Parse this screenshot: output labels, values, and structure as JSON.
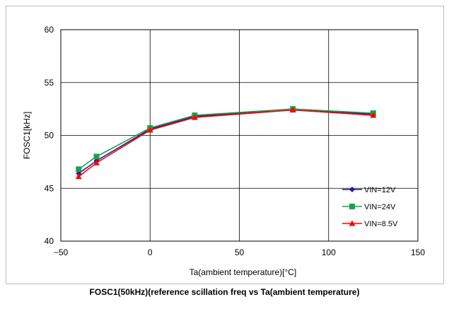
{
  "chart_data": {
    "type": "line",
    "title": "",
    "xlabel": "Ta(ambient temperature)[°C]",
    "ylabel": "FOSC1[kHz]",
    "xlim": [
      -50,
      150
    ],
    "ylim": [
      40,
      60
    ],
    "xticks": [
      -50,
      0,
      50,
      100,
      150
    ],
    "yticks": [
      40,
      45,
      50,
      55,
      60
    ],
    "xtick_labels": [
      "−50",
      "0",
      "50",
      "100",
      "150"
    ],
    "ytick_labels": [
      "40",
      "45",
      "50",
      "55",
      "60"
    ],
    "x": [
      -40,
      -30,
      0,
      25,
      80,
      125
    ],
    "grid": true,
    "legend_position": "bottom-right",
    "series": [
      {
        "name": "VIN=12V",
        "values": [
          46.4,
          47.6,
          50.6,
          51.8,
          52.5,
          52.0
        ],
        "color": "#1f1f8f",
        "marker": "diamond"
      },
      {
        "name": "VIN=24V",
        "values": [
          46.8,
          48.0,
          50.7,
          51.9,
          52.5,
          52.1
        ],
        "color": "#1aa050",
        "marker": "square"
      },
      {
        "name": "VIN=8.5V",
        "values": [
          46.1,
          47.4,
          50.5,
          51.7,
          52.4,
          51.9
        ],
        "color": "#ff0000",
        "marker": "triangle"
      }
    ]
  },
  "caption": "FOSC1(50kHz)(reference scillation freq vs Ta(ambient temperature)"
}
